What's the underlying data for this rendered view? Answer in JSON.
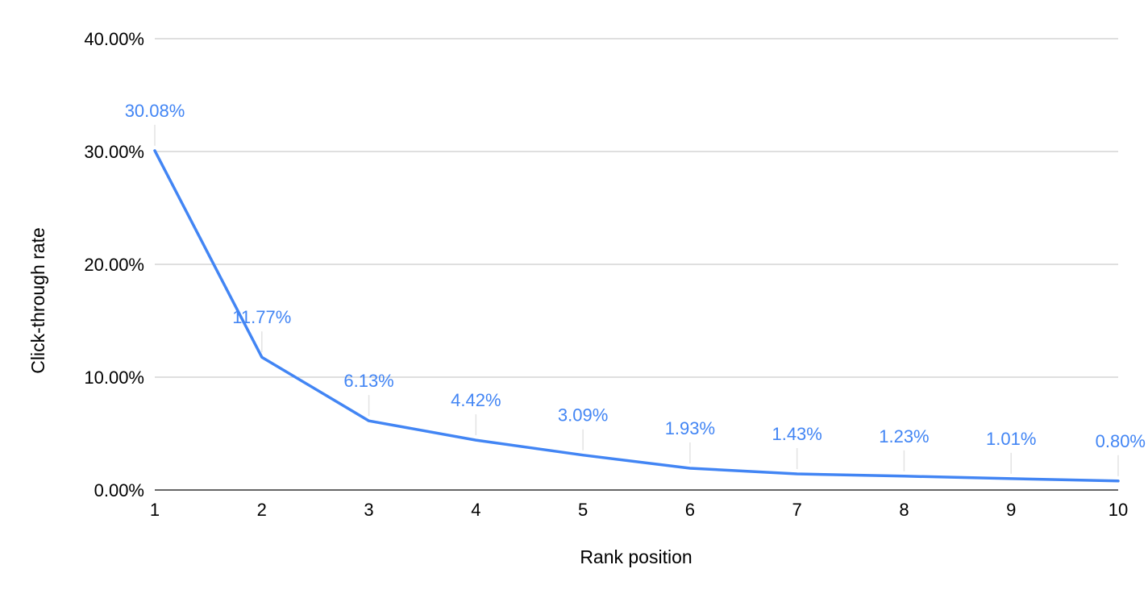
{
  "chart_data": {
    "type": "line",
    "title": "",
    "xlabel": "Rank position",
    "ylabel": "Click-through rate",
    "categories": [
      "1",
      "2",
      "3",
      "4",
      "5",
      "6",
      "7",
      "8",
      "9",
      "10"
    ],
    "x": [
      1,
      2,
      3,
      4,
      5,
      6,
      7,
      8,
      9,
      10
    ],
    "series": [
      {
        "values": [
          30.08,
          11.77,
          6.13,
          4.42,
          3.09,
          1.93,
          1.43,
          1.23,
          1.01,
          0.8
        ],
        "labels": [
          "30.08%",
          "11.77%",
          "6.13%",
          "4.42%",
          "3.09%",
          "1.93%",
          "1.43%",
          "1.23%",
          "1.01%",
          "0.80%"
        ],
        "color": "#4285f4"
      }
    ],
    "yticks": [
      0,
      10,
      20,
      30,
      40
    ],
    "ytick_labels": [
      "0.00%",
      "10.00%",
      "20.00%",
      "30.00%",
      "40.00%"
    ],
    "ylim": [
      0,
      40
    ],
    "xlim": [
      1,
      10
    ],
    "grid": true,
    "legend": "none",
    "colors": {
      "line": "#4285f4",
      "grid": "#cccccc",
      "baseline": "#333333",
      "text": "#000000"
    }
  }
}
